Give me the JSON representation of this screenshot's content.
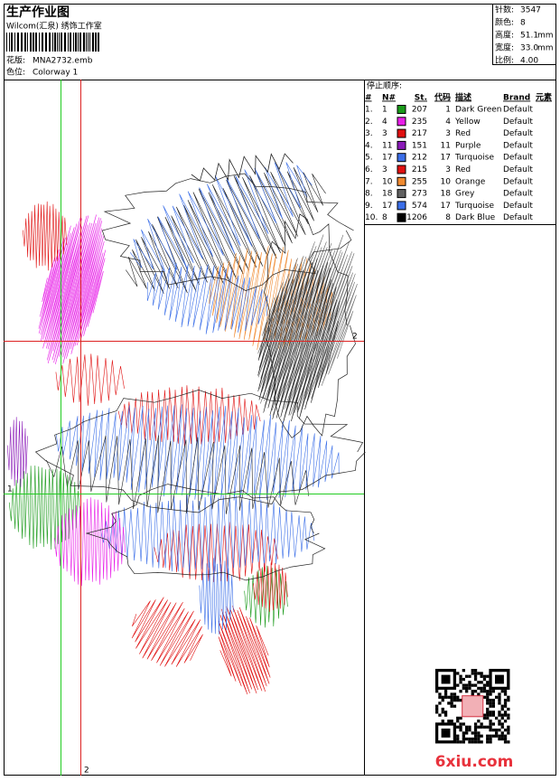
{
  "header": {
    "title": "生产作业图",
    "studio": "Wilcom(汇泉) 绣饰工作室",
    "design_label": "花版:",
    "design": "MNA2732.emb",
    "colorway_label": "色位:",
    "colorway": "Colorway 1"
  },
  "stats": [
    {
      "label": "针数:",
      "value": 3547
    },
    {
      "label": "颜色:",
      "value": 8
    },
    {
      "label": "高度:",
      "value": 51.1,
      "unit": "mm"
    },
    {
      "label": "宽度:",
      "value": "33.0",
      "unit": "mm"
    },
    {
      "label": "比例:",
      "value": "4.00"
    }
  ],
  "stop_sequence": {
    "title": "停止顺序:",
    "columns": [
      "#",
      "N#",
      "St.",
      "代码",
      "描述",
      "Brand",
      "元素"
    ],
    "rows": [
      [
        "1.",
        1,
        "#1a9a1a",
        207,
        1,
        "Dark Green",
        "Default"
      ],
      [
        "2.",
        4,
        "#e81ee8",
        235,
        4,
        "Yellow",
        "Default"
      ],
      [
        "3.",
        3,
        "#e01010",
        217,
        3,
        "Red",
        "Default"
      ],
      [
        "4.",
        11,
        "#8a1ab8",
        151,
        11,
        "Purple",
        "Default"
      ],
      [
        "5.",
        17,
        "#3a6ee8",
        212,
        17,
        "Turquoise",
        "Default"
      ],
      [
        "6.",
        3,
        "#e01010",
        215,
        3,
        "Red",
        "Default"
      ],
      [
        "7.",
        10,
        "#f08a30",
        255,
        10,
        "Orange",
        "Default"
      ],
      [
        "8.",
        18,
        "#606060",
        273,
        18,
        "Grey",
        "Default"
      ],
      [
        "9.",
        17,
        "#3a6ee8",
        574,
        17,
        "Turquoise",
        "Default"
      ],
      [
        "10.",
        8,
        "#000000",
        1206,
        8,
        "Dark Blue",
        "Default"
      ]
    ]
  },
  "guides": {
    "left_label": "1",
    "right_label": "2",
    "bottom_label": "2"
  },
  "watermark": "6xiu.com"
}
